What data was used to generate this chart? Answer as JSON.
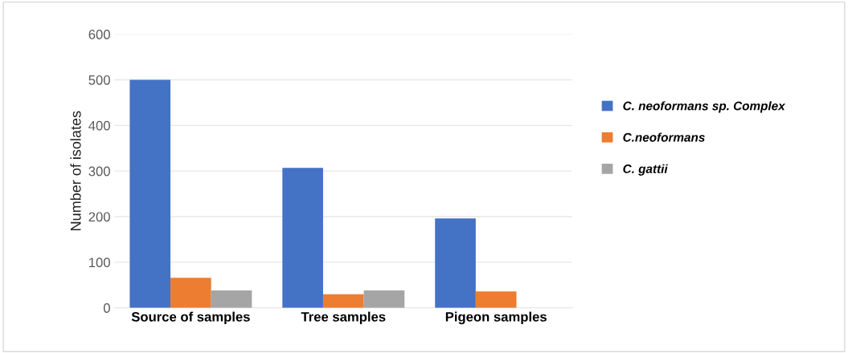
{
  "chart_data": {
    "type": "bar",
    "ylabel": "Number of isolates",
    "categories": [
      "Source of samples",
      "Tree samples",
      "Pigeon samples"
    ],
    "series": [
      {
        "name": "C. neoformans sp. Complex",
        "color": "#4472c4",
        "values": [
          500,
          307,
          196
        ]
      },
      {
        "name": "C.neoformans",
        "color": "#ed7d31",
        "values": [
          66,
          30,
          36
        ]
      },
      {
        "name": "C. gattii",
        "color": "#a5a5a5",
        "values": [
          38,
          38,
          null
        ]
      }
    ],
    "ylim": [
      0,
      600
    ],
    "yticks": [
      0,
      100,
      200,
      300,
      400,
      500,
      600
    ],
    "grid": "y",
    "legend": "right"
  }
}
